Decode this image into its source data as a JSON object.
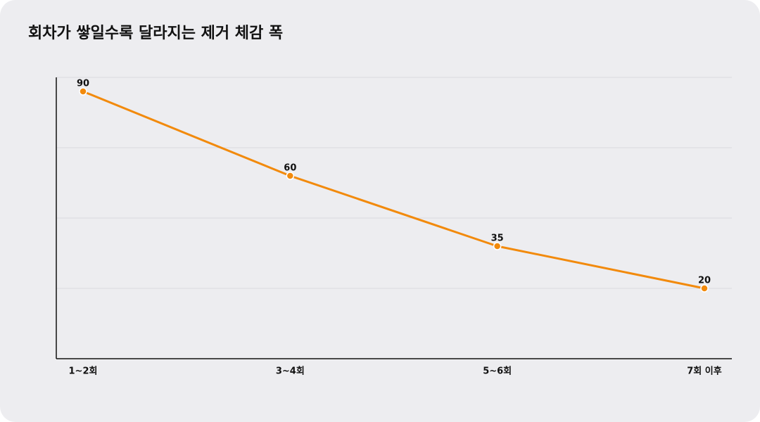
{
  "chart_data": {
    "type": "line",
    "title": "회차가 쌓일수록 달라지는 제거 체감 폭",
    "categories": [
      "1~2회",
      "3~4회",
      "5~6회",
      "7회 이후"
    ],
    "series": [
      {
        "name": "제거 체감 폭",
        "color": "#f28a0c",
        "values": [
          90,
          60,
          35,
          20
        ]
      }
    ],
    "ylim": [
      -5,
      95
    ],
    "yticks": [
      20,
      45,
      70,
      95
    ],
    "grid": true
  }
}
